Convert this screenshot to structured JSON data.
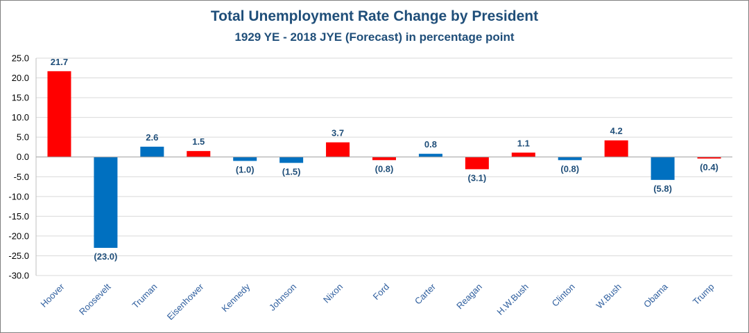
{
  "chart_data": {
    "type": "bar",
    "title": "Total Unemployment Rate Change by President",
    "subtitle": "1929 YE - 2018 JYE (Forecast) in percentage point",
    "xlabel": "",
    "ylabel": "",
    "ylim": [
      -30,
      25
    ],
    "yticks": [
      25,
      20,
      15,
      10,
      5,
      0,
      -5,
      -10,
      -15,
      -20,
      -25,
      -30
    ],
    "ytick_labels": [
      "25.0",
      "20.0",
      "15.0",
      "10.0",
      "5.0",
      "0.0",
      "-5.0",
      "-10.0",
      "-15.0",
      "-20.0",
      "-25.0",
      "-30.0"
    ],
    "grid": true,
    "categories": [
      "Hoover",
      "Roosevelt",
      "Truman",
      "Eisenhower",
      "Kennedy",
      "Johnson",
      "Nixon",
      "Ford",
      "Carter",
      "Reagan",
      "H.W.Bush",
      "Clinton",
      "W.Bush",
      "Obama",
      "Trump"
    ],
    "values": [
      21.7,
      -23.0,
      2.6,
      1.5,
      -1.0,
      -1.5,
      3.7,
      -0.8,
      0.8,
      -3.1,
      1.1,
      -0.8,
      4.2,
      -5.8,
      -0.4
    ],
    "data_labels": [
      "21.7",
      "(23.0)",
      "2.6",
      "1.5",
      "(1.0)",
      "(1.5)",
      "3.7",
      "(0.8)",
      "0.8",
      "(3.1)",
      "1.1",
      "(0.8)",
      "4.2",
      "(5.8)",
      "(0.4)"
    ],
    "party_colors": [
      "#ff0000",
      "#0070c0",
      "#0070c0",
      "#ff0000",
      "#0070c0",
      "#0070c0",
      "#ff0000",
      "#ff0000",
      "#0070c0",
      "#ff0000",
      "#ff0000",
      "#0070c0",
      "#ff0000",
      "#0070c0",
      "#ff0000"
    ]
  }
}
